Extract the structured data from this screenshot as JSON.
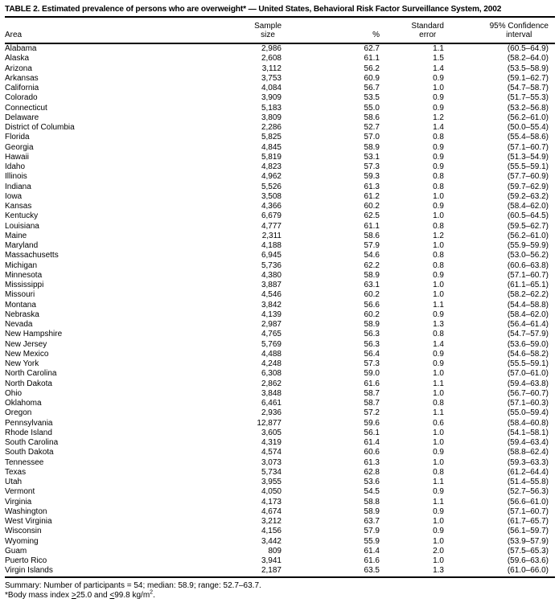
{
  "colors": {
    "text": "#000000",
    "background": "#ffffff",
    "rule": "#000000"
  },
  "table": {
    "title": "TABLE 2. Estimated prevalence of persons who are overweight* — United States, Behavioral Risk Factor Surveillance System, 2002",
    "columns": {
      "area": "Area",
      "sample_line1": "Sample",
      "sample_line2": "size",
      "percent": "%",
      "se_line1": "Standard",
      "se_line2": "error",
      "ci_line1": "95% Confidence",
      "ci_line2": "interval"
    },
    "rows": [
      {
        "area": "Alabama",
        "sample": "2,986",
        "pct": "62.7",
        "se": "1.1",
        "ci": "(60.5–64.9)"
      },
      {
        "area": "Alaska",
        "sample": "2,608",
        "pct": "61.1",
        "se": "1.5",
        "ci": "(58.2–64.0)"
      },
      {
        "area": "Arizona",
        "sample": "3,112",
        "pct": "56.2",
        "se": "1.4",
        "ci": "(53.5–58.9)"
      },
      {
        "area": "Arkansas",
        "sample": "3,753",
        "pct": "60.9",
        "se": "0.9",
        "ci": "(59.1–62.7)"
      },
      {
        "area": "California",
        "sample": "4,084",
        "pct": "56.7",
        "se": "1.0",
        "ci": "(54.7–58.7)"
      },
      {
        "area": "Colorado",
        "sample": "3,909",
        "pct": "53.5",
        "se": "0.9",
        "ci": "(51.7–55.3)"
      },
      {
        "area": "Connecticut",
        "sample": "5,183",
        "pct": "55.0",
        "se": "0.9",
        "ci": "(53.2–56.8)"
      },
      {
        "area": "Delaware",
        "sample": "3,809",
        "pct": "58.6",
        "se": "1.2",
        "ci": "(56.2–61.0)"
      },
      {
        "area": "District of Columbia",
        "sample": "2,286",
        "pct": "52.7",
        "se": "1.4",
        "ci": "(50.0–55.4)"
      },
      {
        "area": "Florida",
        "sample": "5,825",
        "pct": "57.0",
        "se": "0.8",
        "ci": "(55.4–58.6)"
      },
      {
        "area": "Georgia",
        "sample": "4,845",
        "pct": "58.9",
        "se": "0.9",
        "ci": "(57.1–60.7)"
      },
      {
        "area": "Hawaii",
        "sample": "5,819",
        "pct": "53.1",
        "se": "0.9",
        "ci": "(51.3–54.9)"
      },
      {
        "area": "Idaho",
        "sample": "4,823",
        "pct": "57.3",
        "se": "0.9",
        "ci": "(55.5–59.1)"
      },
      {
        "area": "Illinois",
        "sample": "4,962",
        "pct": "59.3",
        "se": "0.8",
        "ci": "(57.7–60.9)"
      },
      {
        "area": "Indiana",
        "sample": "5,526",
        "pct": "61.3",
        "se": "0.8",
        "ci": "(59.7–62.9)"
      },
      {
        "area": "Iowa",
        "sample": "3,508",
        "pct": "61.2",
        "se": "1.0",
        "ci": "(59.2–63.2)"
      },
      {
        "area": "Kansas",
        "sample": "4,366",
        "pct": "60.2",
        "se": "0.9",
        "ci": "(58.4–62.0)"
      },
      {
        "area": "Kentucky",
        "sample": "6,679",
        "pct": "62.5",
        "se": "1.0",
        "ci": "(60.5–64.5)"
      },
      {
        "area": "Louisiana",
        "sample": "4,777",
        "pct": "61.1",
        "se": "0.8",
        "ci": "(59.5–62.7)"
      },
      {
        "area": "Maine",
        "sample": "2,311",
        "pct": "58.6",
        "se": "1.2",
        "ci": "(56.2–61.0)"
      },
      {
        "area": "Maryland",
        "sample": "4,188",
        "pct": "57.9",
        "se": "1.0",
        "ci": "(55.9–59.9)"
      },
      {
        "area": "Massachusetts",
        "sample": "6,945",
        "pct": "54.6",
        "se": "0.8",
        "ci": "(53.0–56.2)"
      },
      {
        "area": "Michigan",
        "sample": "5,736",
        "pct": "62.2",
        "se": "0.8",
        "ci": "(60.6–63.8)"
      },
      {
        "area": "Minnesota",
        "sample": "4,380",
        "pct": "58.9",
        "se": "0.9",
        "ci": "(57.1–60.7)"
      },
      {
        "area": "Mississippi",
        "sample": "3,887",
        "pct": "63.1",
        "se": "1.0",
        "ci": "(61.1–65.1)"
      },
      {
        "area": "Missouri",
        "sample": "4,546",
        "pct": "60.2",
        "se": "1.0",
        "ci": "(58.2–62.2)"
      },
      {
        "area": "Montana",
        "sample": "3,842",
        "pct": "56.6",
        "se": "1.1",
        "ci": "(54.4–58.8)"
      },
      {
        "area": "Nebraska",
        "sample": "4,139",
        "pct": "60.2",
        "se": "0.9",
        "ci": "(58.4–62.0)"
      },
      {
        "area": "Nevada",
        "sample": "2,987",
        "pct": "58.9",
        "se": "1.3",
        "ci": "(56.4–61.4)"
      },
      {
        "area": "New Hampshire",
        "sample": "4,765",
        "pct": "56.3",
        "se": "0.8",
        "ci": "(54.7–57.9)"
      },
      {
        "area": "New Jersey",
        "sample": "5,769",
        "pct": "56.3",
        "se": "1.4",
        "ci": "(53.6–59.0)"
      },
      {
        "area": "New Mexico",
        "sample": "4,488",
        "pct": "56.4",
        "se": "0.9",
        "ci": "(54.6–58.2)"
      },
      {
        "area": "New York",
        "sample": "4,248",
        "pct": "57.3",
        "se": "0.9",
        "ci": "(55.5–59.1)"
      },
      {
        "area": "North Carolina",
        "sample": "6,308",
        "pct": "59.0",
        "se": "1.0",
        "ci": "(57.0–61.0)"
      },
      {
        "area": "North Dakota",
        "sample": "2,862",
        "pct": "61.6",
        "se": "1.1",
        "ci": "(59.4–63.8)"
      },
      {
        "area": "Ohio",
        "sample": "3,848",
        "pct": "58.7",
        "se": "1.0",
        "ci": "(56.7–60.7)"
      },
      {
        "area": "Oklahoma",
        "sample": "6,461",
        "pct": "58.7",
        "se": "0.8",
        "ci": "(57.1–60.3)"
      },
      {
        "area": "Oregon",
        "sample": "2,936",
        "pct": "57.2",
        "se": "1.1",
        "ci": "(55.0–59.4)"
      },
      {
        "area": "Pennsylvania",
        "sample": "12,877",
        "pct": "59.6",
        "se": "0.6",
        "ci": "(58.4–60.8)"
      },
      {
        "area": "Rhode Island",
        "sample": "3,605",
        "pct": "56.1",
        "se": "1.0",
        "ci": "(54.1–58.1)"
      },
      {
        "area": "South Carolina",
        "sample": "4,319",
        "pct": "61.4",
        "se": "1.0",
        "ci": "(59.4–63.4)"
      },
      {
        "area": "South Dakota",
        "sample": "4,574",
        "pct": "60.6",
        "se": "0.9",
        "ci": "(58.8–62.4)"
      },
      {
        "area": "Tennessee",
        "sample": "3,073",
        "pct": "61.3",
        "se": "1.0",
        "ci": "(59.3–63.3)"
      },
      {
        "area": "Texas",
        "sample": "5,734",
        "pct": "62.8",
        "se": "0.8",
        "ci": "(61.2–64.4)"
      },
      {
        "area": "Utah",
        "sample": "3,955",
        "pct": "53.6",
        "se": "1.1",
        "ci": "(51.4–55.8)"
      },
      {
        "area": "Vermont",
        "sample": "4,050",
        "pct": "54.5",
        "se": "0.9",
        "ci": "(52.7–56.3)"
      },
      {
        "area": "Virginia",
        "sample": "4,173",
        "pct": "58.8",
        "se": "1.1",
        "ci": "(56.6–61.0)"
      },
      {
        "area": "Washington",
        "sample": "4,674",
        "pct": "58.9",
        "se": "0.9",
        "ci": "(57.1–60.7)"
      },
      {
        "area": "West Virginia",
        "sample": "3,212",
        "pct": "63.7",
        "se": "1.0",
        "ci": "(61.7–65.7)"
      },
      {
        "area": "Wisconsin",
        "sample": "4,156",
        "pct": "57.9",
        "se": "0.9",
        "ci": "(56.1–59.7)"
      },
      {
        "area": "Wyoming",
        "sample": "3,442",
        "pct": "55.9",
        "se": "1.0",
        "ci": "(53.9–57.9)"
      },
      {
        "area": "Guam",
        "sample": "809",
        "pct": "61.4",
        "se": "2.0",
        "ci": "(57.5–65.3)"
      },
      {
        "area": "Puerto Rico",
        "sample": "3,941",
        "pct": "61.6",
        "se": "1.0",
        "ci": "(59.6–63.6)"
      },
      {
        "area": "Virgin Islands",
        "sample": "2,187",
        "pct": "63.5",
        "se": "1.3",
        "ci": "(61.0–66.0)"
      }
    ]
  },
  "footer": {
    "summary": "Summary: Number of participants = 54; median: 58.9; range: 52.7–63.7.",
    "footnote": {
      "marker": "*",
      "part1": "Body mass index ",
      "gte": ">",
      "part2": "25.0 and ",
      "lte": "<",
      "part3": "99.8 kg/m",
      "superscript": "2",
      "part4": "."
    }
  }
}
